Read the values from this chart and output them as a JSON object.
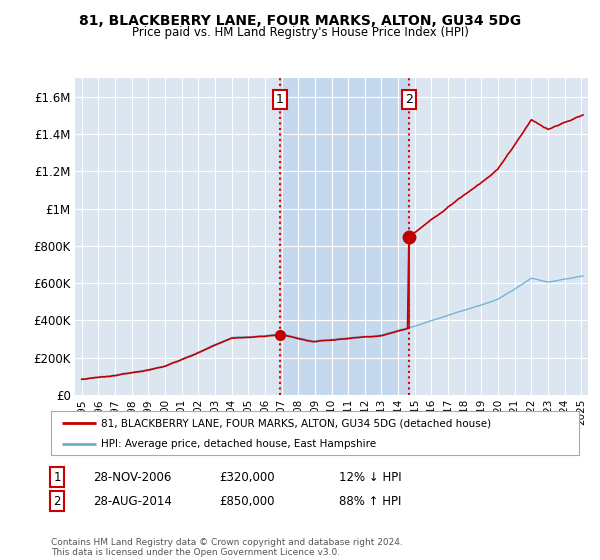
{
  "title": "81, BLACKBERRY LANE, FOUR MARKS, ALTON, GU34 5DG",
  "subtitle": "Price paid vs. HM Land Registry's House Price Index (HPI)",
  "ylim": [
    0,
    1700000
  ],
  "yticks": [
    0,
    200000,
    400000,
    600000,
    800000,
    1000000,
    1200000,
    1400000,
    1600000
  ],
  "ytick_labels": [
    "£0",
    "£200K",
    "£400K",
    "£600K",
    "£800K",
    "£1M",
    "£1.2M",
    "£1.4M",
    "£1.6M"
  ],
  "hpi_color": "#6baed6",
  "price_color": "#c00000",
  "transaction1_date": 2006.91,
  "transaction1_price": 320000,
  "transaction2_date": 2014.66,
  "transaction2_price": 850000,
  "vline_color": "#e00000",
  "legend_line1": "81, BLACKBERRY LANE, FOUR MARKS, ALTON, GU34 5DG (detached house)",
  "legend_line2": "HPI: Average price, detached house, East Hampshire",
  "table_row1": [
    "1",
    "28-NOV-2006",
    "£320,000",
    "12% ↓ HPI"
  ],
  "table_row2": [
    "2",
    "28-AUG-2014",
    "£850,000",
    "88% ↑ HPI"
  ],
  "footnote": "Contains HM Land Registry data © Crown copyright and database right 2024.\nThis data is licensed under the Open Government Licence v3.0.",
  "plot_bg_color": "#dce6f1",
  "shade_color": "#c5d8ee",
  "grid_color": "#ffffff",
  "xlim_left": 1994.6,
  "xlim_right": 2025.4
}
